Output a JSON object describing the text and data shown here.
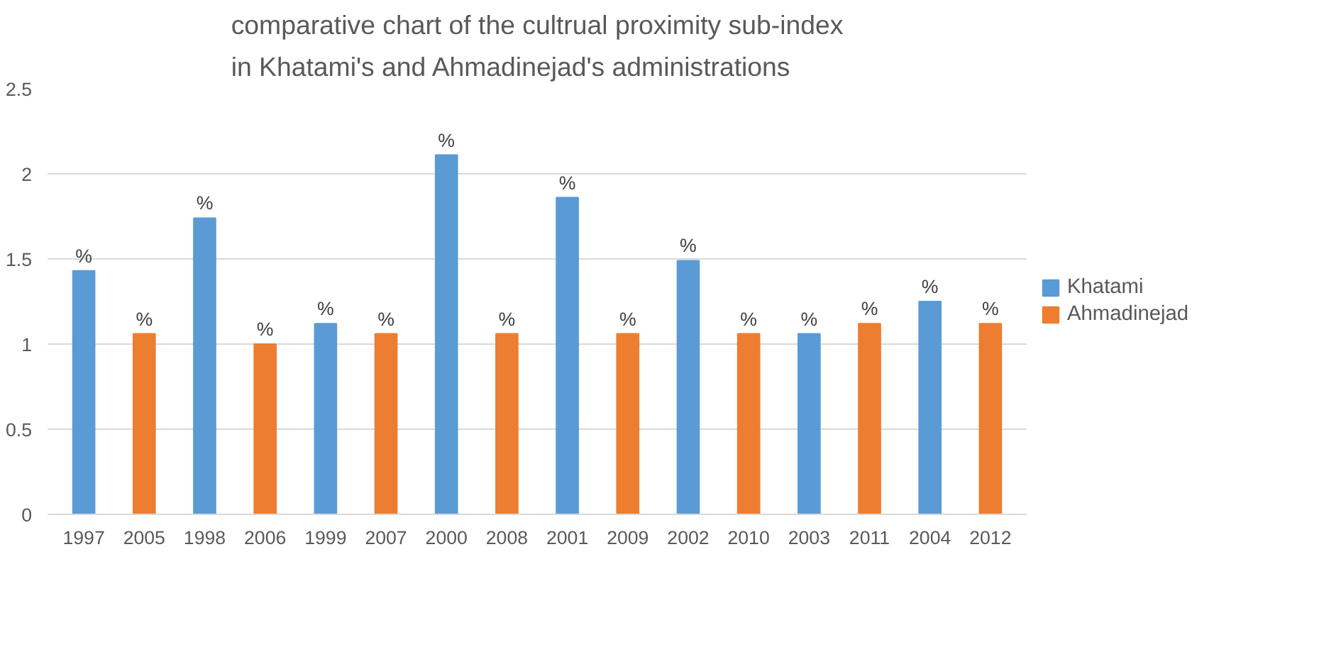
{
  "chart_data": {
    "type": "bar",
    "title": "comparative chart of the cultrual proximity sub-index in Khatami's and Ahmadinejad's administrations",
    "categories": [
      "1997",
      "2005",
      "1998",
      "2006",
      "1999",
      "2007",
      "2000",
      "2008",
      "2001",
      "2009",
      "2002",
      "2010",
      "2003",
      "2011",
      "2004",
      "2012"
    ],
    "series": [
      {
        "name": "Khatami",
        "color": "#5b9bd5",
        "values": [
          1.43,
          null,
          1.74,
          null,
          1.12,
          null,
          2.11,
          null,
          1.86,
          null,
          1.49,
          null,
          1.06,
          null,
          1.25,
          null
        ],
        "value_labels": [
          "%",
          null,
          "%",
          null,
          "%",
          null,
          "%",
          null,
          "%",
          null,
          "%",
          null,
          "%",
          null,
          "%",
          null
        ]
      },
      {
        "name": "Ahmadinejad",
        "color": "#ed7d31",
        "values": [
          null,
          1.06,
          null,
          1.0,
          null,
          1.06,
          null,
          1.06,
          null,
          1.06,
          null,
          1.06,
          null,
          1.12,
          null,
          1.12
        ],
        "value_labels": [
          null,
          "%",
          null,
          "%",
          null,
          "%",
          null,
          "%",
          null,
          "%",
          null,
          "%",
          null,
          "%",
          null,
          "%"
        ]
      }
    ],
    "ylim": [
      0,
      2.5
    ],
    "yticks": [
      0,
      0.5,
      1,
      1.5,
      2,
      2.5
    ],
    "grid": "y",
    "legend": "right"
  }
}
